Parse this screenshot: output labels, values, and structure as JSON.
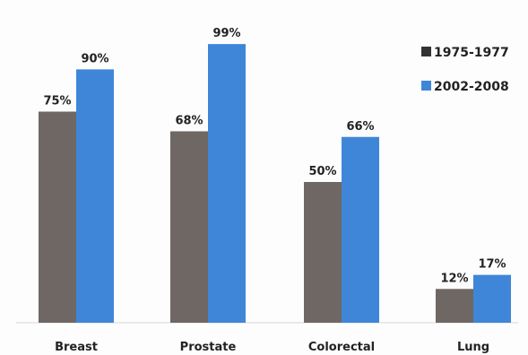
{
  "chart_data": {
    "type": "bar",
    "categories": [
      "Breast",
      "Prostate",
      "Colorectal",
      "Lung"
    ],
    "series": [
      {
        "name": "1975-1977",
        "values": [
          75,
          68,
          50,
          12
        ],
        "labels": [
          "75%",
          "68%",
          "50%",
          "12%"
        ],
        "color": "#6e6763"
      },
      {
        "name": "2002-2008",
        "values": [
          90,
          99,
          66,
          17
        ],
        "labels": [
          "90%",
          "99%",
          "66%",
          "17%"
        ],
        "color": "#3f86d8"
      }
    ],
    "ylim": [
      0,
      100
    ],
    "grid": false,
    "legend_position": "top-right"
  }
}
